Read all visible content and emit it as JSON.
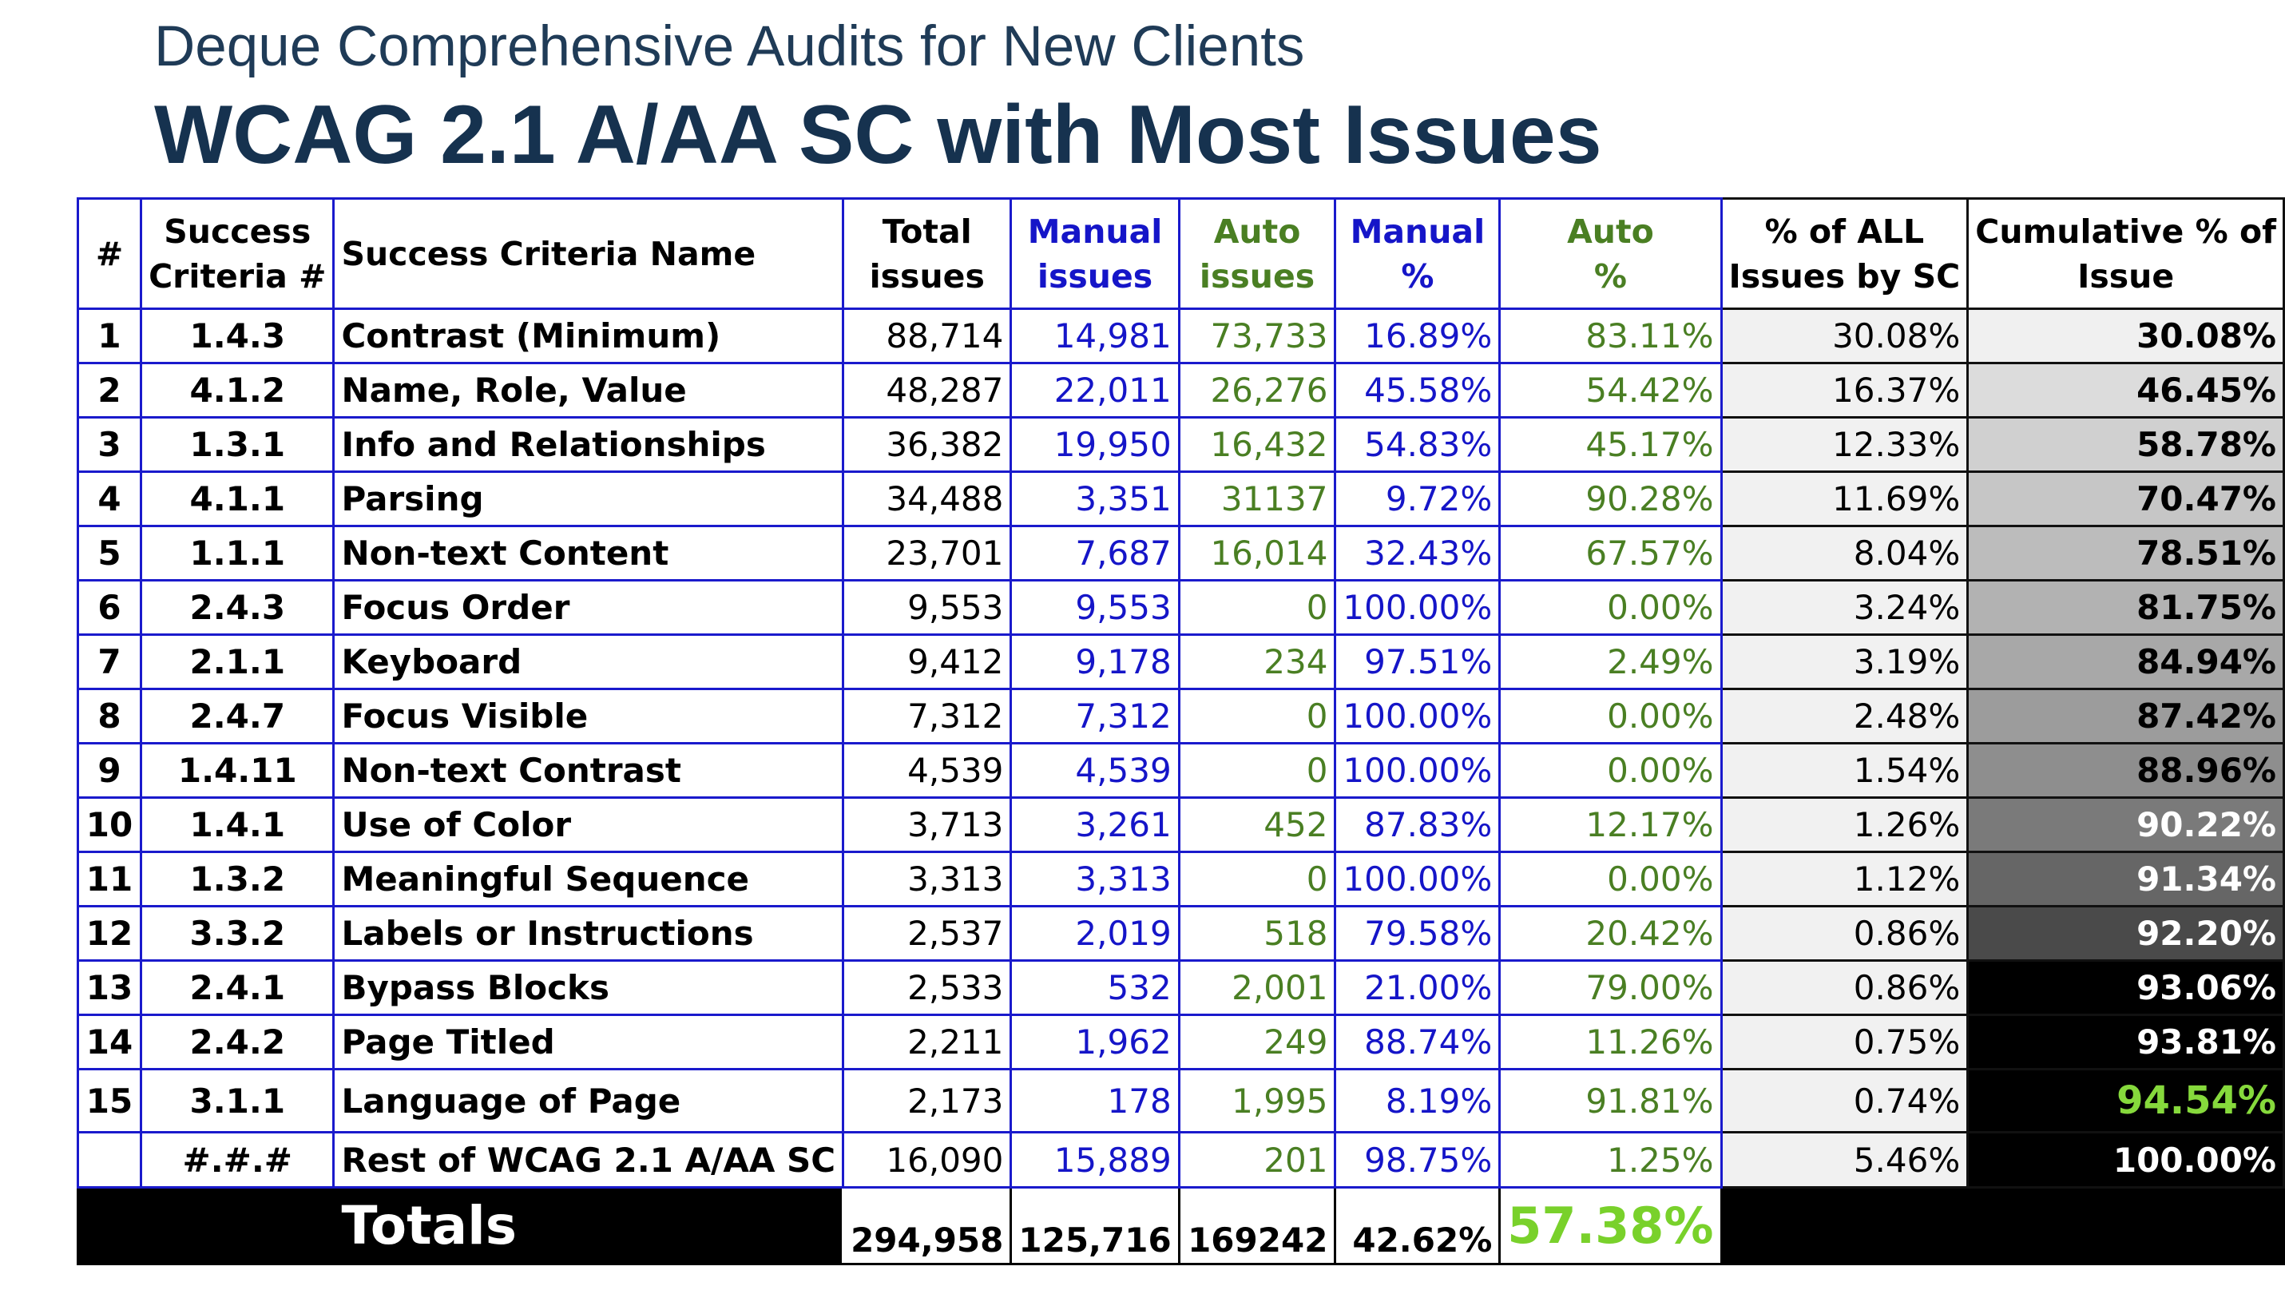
{
  "header": {
    "subtitle": "Deque Comprehensive Audits for New Clients",
    "title": "WCAG 2.1 A/AA SC with Most Issues"
  },
  "columns": {
    "num": "#",
    "sc_1": "Success",
    "sc_2": "Criteria #",
    "name": "Success Criteria Name",
    "total_1": "Total",
    "total_2": "issues",
    "manual_1": "Manual",
    "manual_2": "issues",
    "auto_1": "Auto",
    "auto_2": "issues",
    "manual_pct_1": "Manual",
    "manual_pct_2": "%",
    "auto_pct_1": "Auto",
    "auto_pct_2": "%",
    "all_pct_1": "% of ALL",
    "all_pct_2": "Issues by SC",
    "cum_1": "Cumulative % of",
    "cum_2": "Issue"
  },
  "colors": {
    "manual": "#1515c8",
    "auto": "#4a7f23",
    "highlight": "#86d93c"
  },
  "rows": [
    {
      "num": "1",
      "sc": "1.4.3",
      "name": "Contrast (Minimum)",
      "total": "88,714",
      "manual": "14,981",
      "auto": "73,733",
      "manual_pct": "16.89%",
      "auto_pct": "83.11%",
      "all_pct": "30.08%",
      "cum": "30.08%",
      "cum_bg": "#f0f0f0",
      "cum_fg": "#000000"
    },
    {
      "num": "2",
      "sc": "4.1.2",
      "name": "Name, Role, Value",
      "total": "48,287",
      "manual": "22,011",
      "auto": "26,276",
      "manual_pct": "45.58%",
      "auto_pct": "54.42%",
      "all_pct": "16.37%",
      "cum": "46.45%",
      "cum_bg": "#dcdcdc",
      "cum_fg": "#000000"
    },
    {
      "num": "3",
      "sc": "1.3.1",
      "name": "Info and Relationships",
      "total": "36,382",
      "manual": "19,950",
      "auto": "16,432",
      "manual_pct": "54.83%",
      "auto_pct": "45.17%",
      "all_pct": "12.33%",
      "cum": "58.78%",
      "cum_bg": "#d0d0d0",
      "cum_fg": "#000000"
    },
    {
      "num": "4",
      "sc": "4.1.1",
      "name": "Parsing",
      "total": "34,488",
      "manual": "3,351",
      "auto": "31137",
      "manual_pct": "9.72%",
      "auto_pct": "90.28%",
      "all_pct": "11.69%",
      "cum": "70.47%",
      "cum_bg": "#c6c6c6",
      "cum_fg": "#000000"
    },
    {
      "num": "5",
      "sc": "1.1.1",
      "name": "Non-text Content",
      "total": "23,701",
      "manual": "7,687",
      "auto": "16,014",
      "manual_pct": "32.43%",
      "auto_pct": "67.57%",
      "all_pct": "8.04%",
      "cum": "78.51%",
      "cum_bg": "#bcbcbc",
      "cum_fg": "#000000"
    },
    {
      "num": "6",
      "sc": "2.4.3",
      "name": "Focus Order",
      "total": "9,553",
      "manual": "9,553",
      "auto": "0",
      "manual_pct": "100.00%",
      "auto_pct": "0.00%",
      "all_pct": "3.24%",
      "cum": "81.75%",
      "cum_bg": "#b2b2b2",
      "cum_fg": "#000000"
    },
    {
      "num": "7",
      "sc": "2.1.1",
      "name": "Keyboard",
      "total": "9,412",
      "manual": "9,178",
      "auto": "234",
      "manual_pct": "97.51%",
      "auto_pct": "2.49%",
      "all_pct": "3.19%",
      "cum": "84.94%",
      "cum_bg": "#a8a8a8",
      "cum_fg": "#000000"
    },
    {
      "num": "8",
      "sc": "2.4.7",
      "name": "Focus Visible",
      "total": "7,312",
      "manual": "7,312",
      "auto": "0",
      "manual_pct": "100.00%",
      "auto_pct": "0.00%",
      "all_pct": "2.48%",
      "cum": "87.42%",
      "cum_bg": "#9c9c9c",
      "cum_fg": "#000000"
    },
    {
      "num": "9",
      "sc": "1.4.11",
      "name": "Non-text Contrast",
      "total": "4,539",
      "manual": "4,539",
      "auto": "0",
      "manual_pct": "100.00%",
      "auto_pct": "0.00%",
      "all_pct": "1.54%",
      "cum": "88.96%",
      "cum_bg": "#8e8e8e",
      "cum_fg": "#000000"
    },
    {
      "num": "10",
      "sc": "1.4.1",
      "name": "Use of Color",
      "total": "3,713",
      "manual": "3,261",
      "auto": "452",
      "manual_pct": "87.83%",
      "auto_pct": "12.17%",
      "all_pct": "1.26%",
      "cum": "90.22%",
      "cum_bg": "#7a7a7a",
      "cum_fg": "#ffffff"
    },
    {
      "num": "11",
      "sc": "1.3.2",
      "name": "Meaningful Sequence",
      "total": "3,313",
      "manual": "3,313",
      "auto": "0",
      "manual_pct": "100.00%",
      "auto_pct": "0.00%",
      "all_pct": "1.12%",
      "cum": "91.34%",
      "cum_bg": "#666666",
      "cum_fg": "#ffffff"
    },
    {
      "num": "12",
      "sc": "3.3.2",
      "name": "Labels or Instructions",
      "total": "2,537",
      "manual": "2,019",
      "auto": "518",
      "manual_pct": "79.58%",
      "auto_pct": "20.42%",
      "all_pct": "0.86%",
      "cum": "92.20%",
      "cum_bg": "#4a4a4a",
      "cum_fg": "#ffffff"
    },
    {
      "num": "13",
      "sc": "2.4.1",
      "name": "Bypass Blocks",
      "total": "2,533",
      "manual": "532",
      "auto": "2,001",
      "manual_pct": "21.00%",
      "auto_pct": "79.00%",
      "all_pct": "0.86%",
      "cum": "93.06%",
      "cum_bg": "#000000",
      "cum_fg": "#ffffff"
    },
    {
      "num": "14",
      "sc": "2.4.2",
      "name": "Page Titled",
      "total": "2,211",
      "manual": "1,962",
      "auto": "249",
      "manual_pct": "88.74%",
      "auto_pct": "11.26%",
      "all_pct": "0.75%",
      "cum": "93.81%",
      "cum_bg": "#000000",
      "cum_fg": "#ffffff"
    },
    {
      "num": "15",
      "sc": "3.1.1",
      "name": "Language of Page",
      "total": "2,173",
      "manual": "178",
      "auto": "1,995",
      "manual_pct": "8.19%",
      "auto_pct": "91.81%",
      "all_pct": "0.74%",
      "cum": "94.54%",
      "cum_bg": "#000000",
      "cum_fg": "#86d93c"
    },
    {
      "num": "",
      "sc": "#.#.#",
      "name": "Rest of WCAG 2.1 A/AA SC",
      "total": "16,090",
      "manual": "15,889",
      "auto": "201",
      "manual_pct": "98.75%",
      "auto_pct": "1.25%",
      "all_pct": "5.46%",
      "cum": "100.00%",
      "cum_bg": "#000000",
      "cum_fg": "#ffffff"
    }
  ],
  "totals": {
    "label": "Totals",
    "total": "294,958",
    "manual": "125,716",
    "auto": "169242",
    "manual_pct": "42.62%",
    "auto_pct": "57.38%"
  }
}
